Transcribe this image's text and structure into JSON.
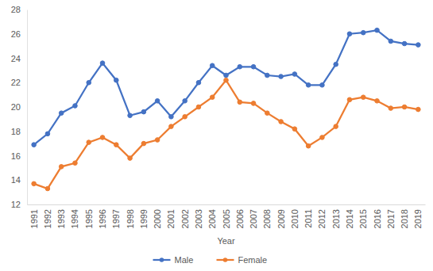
{
  "chart_data": {
    "type": "line",
    "x_label": "Year",
    "categories": [
      "1991",
      "1992",
      "1993",
      "1994",
      "1995",
      "1996",
      "1997",
      "1998",
      "1999",
      "2000",
      "2001",
      "2002",
      "2003",
      "2004",
      "2005",
      "2006",
      "2007",
      "2008",
      "2009",
      "2010",
      "2011",
      "2012",
      "2013",
      "2014",
      "2015",
      "2016",
      "2017",
      "2018",
      "2019"
    ],
    "series": [
      {
        "name": "Male",
        "color": "#4472c4",
        "marker": "circle",
        "values": [
          16.9,
          17.8,
          19.5,
          20.1,
          22.0,
          23.6,
          22.2,
          19.3,
          19.6,
          20.5,
          19.2,
          20.5,
          22.0,
          23.4,
          22.6,
          23.3,
          23.3,
          22.6,
          22.5,
          22.7,
          21.8,
          21.8,
          23.5,
          26.0,
          26.1,
          26.3,
          25.4,
          25.2,
          25.1
        ]
      },
      {
        "name": "Female",
        "color": "#ed7d31",
        "marker": "circle",
        "values": [
          13.7,
          13.3,
          15.1,
          15.4,
          17.1,
          17.5,
          16.9,
          15.8,
          17.0,
          17.3,
          18.4,
          19.2,
          20.0,
          20.8,
          22.2,
          20.4,
          20.3,
          19.5,
          18.8,
          18.2,
          16.8,
          17.5,
          18.4,
          20.6,
          20.8,
          20.5,
          19.9,
          20.0,
          19.8
        ]
      }
    ],
    "ylim": [
      12,
      28
    ],
    "yticks": [
      12,
      14,
      16,
      18,
      20,
      22,
      24,
      26,
      28
    ],
    "grid": false,
    "legend": "bottom"
  }
}
